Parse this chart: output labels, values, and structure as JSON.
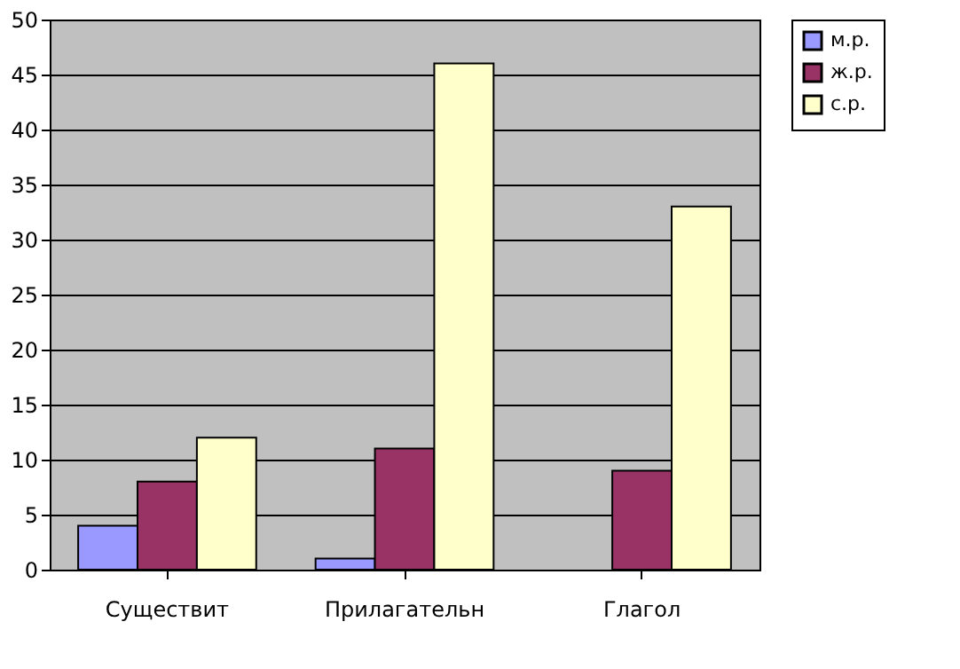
{
  "chart_data": {
    "type": "bar",
    "categories": [
      "Существит",
      "Прилагательн",
      "Глагол"
    ],
    "series": [
      {
        "name": "м.р.",
        "color": "#9999ff",
        "values": [
          4,
          1,
          null
        ]
      },
      {
        "name": "ж.р.",
        "color": "#993366",
        "values": [
          8,
          11,
          9
        ]
      },
      {
        "name": "с.р.",
        "color": "#ffffcc",
        "values": [
          12,
          46,
          33
        ]
      }
    ],
    "ylim": [
      0,
      50
    ],
    "yticks": [
      0,
      5,
      10,
      15,
      20,
      25,
      30,
      35,
      40,
      45,
      50
    ],
    "grid": "y",
    "legend": "right"
  }
}
